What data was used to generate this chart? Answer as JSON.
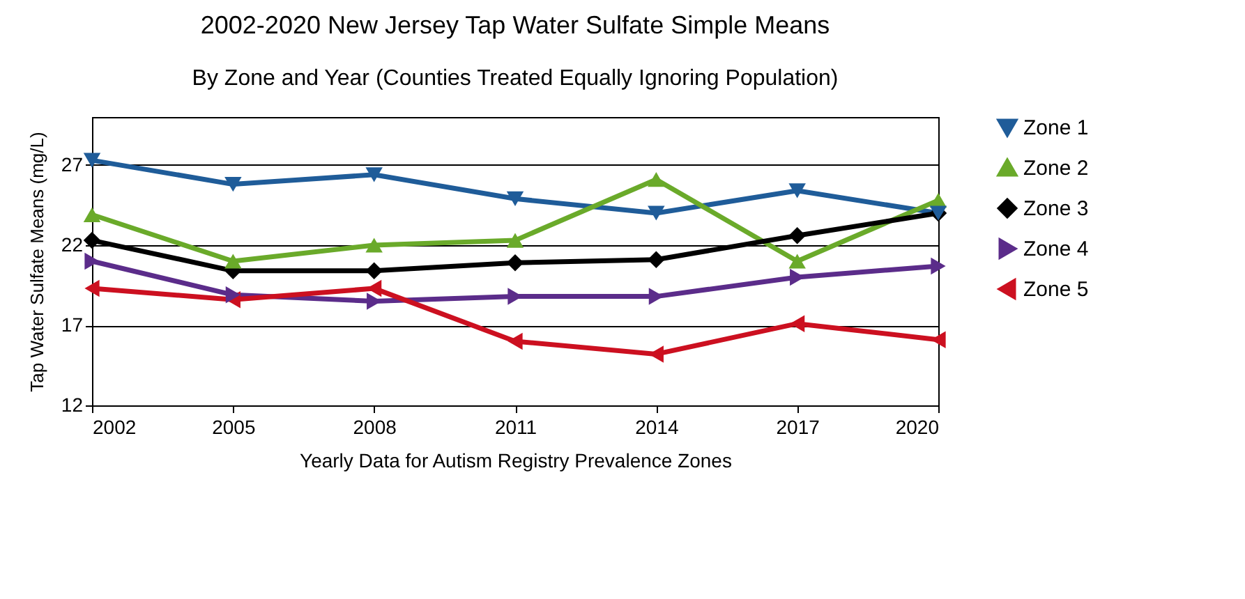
{
  "chart_data": {
    "type": "line",
    "title": "2002-2020 New Jersey Tap Water Sulfate Simple Means",
    "subtitle": "By Zone and Year (Counties Treated Equally Ignoring Population)",
    "xlabel": "Yearly Data for Autism Registry Prevalence Zones",
    "ylabel": "Tap Water Sulfate Means (mg/L)",
    "x": [
      2002,
      2005,
      2008,
      2011,
      2014,
      2017,
      2020
    ],
    "series": [
      {
        "name": "Zone 1",
        "color": "#1f5c99",
        "marker": "triangle",
        "values": [
          27.3,
          25.8,
          26.4,
          24.9,
          24.0,
          25.4,
          24.0
        ]
      },
      {
        "name": "Zone 2",
        "color": "#6aaa2a",
        "marker": "triangle",
        "values": [
          23.9,
          21.0,
          22.0,
          22.3,
          26.1,
          21.0,
          24.8
        ]
      },
      {
        "name": "Zone 3",
        "color": "#000000",
        "marker": "diamond",
        "values": [
          22.3,
          20.4,
          20.4,
          20.9,
          21.1,
          22.6,
          24.0
        ]
      },
      {
        "name": "Zone 4",
        "color": "#5b2c8a",
        "marker": "triangle",
        "values": [
          21.0,
          18.9,
          18.5,
          18.8,
          18.8,
          20.0,
          20.7
        ]
      },
      {
        "name": "Zone 5",
        "color": "#cc1020",
        "marker": "triangle",
        "values": [
          19.3,
          18.6,
          19.3,
          16.0,
          15.2,
          17.1,
          16.1
        ]
      }
    ],
    "xlim": [
      2002,
      2020
    ],
    "xticks": [
      2002,
      2005,
      2008,
      2011,
      2014,
      2017,
      2020
    ],
    "ylim": [
      12,
      30
    ],
    "yticks": [
      12,
      17,
      22,
      27
    ],
    "grid": "y",
    "legend": "right"
  }
}
